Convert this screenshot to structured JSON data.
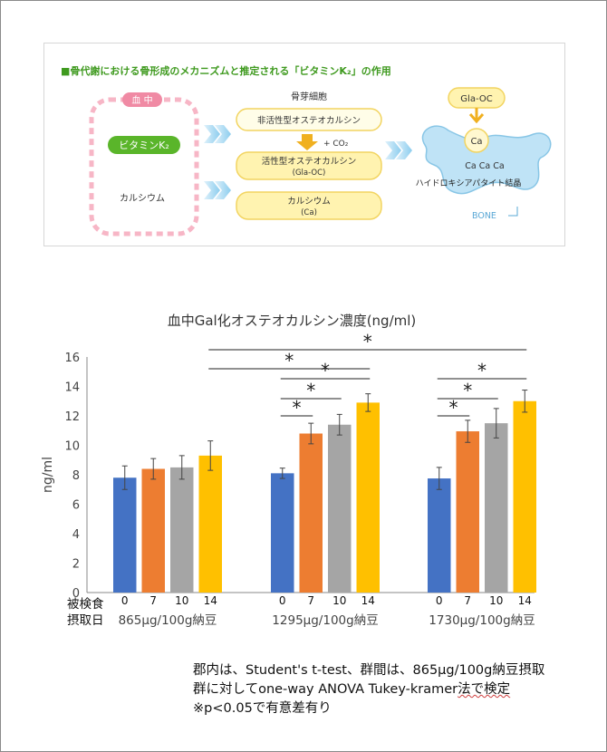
{
  "diagram": {
    "title": "■骨代謝における骨形成のメカニズムと推定される「ビタミンK₂」の作用",
    "blood_label": "血 中",
    "vitk2_label": "ビタミンK₂",
    "calcium_label": "カルシウム",
    "osteoblast_label": "骨芽細胞",
    "inactive_oc": "非活性型オステオカルシン",
    "co2": "+ CO₂",
    "active_oc": "活性型オステオカルシン",
    "active_oc_sub": "(Gla-OC)",
    "calcium_box": "カルシウム",
    "calcium_box_sub": "(Ca)",
    "glaoc": "Gla-OC",
    "ca": "Ca",
    "ca_row": "Ca  Ca  Ca",
    "hydroxy": "ハイドロキシアパタイト結晶",
    "bone": "BONE",
    "colors": {
      "green": "#5ab52a",
      "pink": "#f08aa4",
      "blue": "#a9d8f2",
      "yellow": "#f2c230"
    }
  },
  "chart_data": {
    "type": "bar",
    "title": "血中Gal化オステオカルシン濃度(ng/ml)",
    "ylabel": "ng/ml",
    "xlabel_lines": [
      "被検食",
      "摂取日"
    ],
    "ylim": [
      0,
      16
    ],
    "yticks": [
      0,
      2,
      4,
      6,
      8,
      10,
      12,
      14,
      16
    ],
    "grid": false,
    "groups": [
      {
        "name": "865µg/100g納豆",
        "days": [
          "0",
          "7",
          "10",
          "14"
        ],
        "values": [
          7.8,
          8.4,
          8.5,
          9.3
        ],
        "errors": [
          0.8,
          0.7,
          0.8,
          1.0
        ]
      },
      {
        "name": "1295µg/100g納豆",
        "days": [
          "0",
          "7",
          "10",
          "14"
        ],
        "values": [
          8.1,
          10.8,
          11.4,
          12.9
        ],
        "errors": [
          0.35,
          0.7,
          0.7,
          0.6
        ]
      },
      {
        "name": "1730µg/100g納豆",
        "days": [
          "0",
          "7",
          "10",
          "14"
        ],
        "values": [
          7.75,
          10.95,
          11.5,
          13.0
        ],
        "errors": [
          0.75,
          0.75,
          1.0,
          0.75
        ]
      }
    ],
    "series_colors": [
      "#4472c4",
      "#ed7d31",
      "#a5a5a5",
      "#ffc000"
    ],
    "significance": [
      {
        "from": [
          1,
          0
        ],
        "to": [
          1,
          1
        ],
        "label": "*"
      },
      {
        "from": [
          1,
          0
        ],
        "to": [
          1,
          2
        ],
        "label": "*"
      },
      {
        "from": [
          1,
          0
        ],
        "to": [
          1,
          3
        ],
        "label": "*"
      },
      {
        "from": [
          2,
          0
        ],
        "to": [
          2,
          1
        ],
        "label": "*"
      },
      {
        "from": [
          2,
          0
        ],
        "to": [
          2,
          2
        ],
        "label": "*"
      },
      {
        "from": [
          2,
          0
        ],
        "to": [
          2,
          3
        ],
        "label": "*"
      },
      {
        "from": [
          0,
          3
        ],
        "to": [
          1,
          3
        ],
        "label": "*"
      },
      {
        "from": [
          0,
          3
        ],
        "to": [
          2,
          3
        ],
        "label": "*"
      }
    ]
  },
  "notes": {
    "line1": "郡内は、Student's t-test、群間は、865µg/100g納豆摂取",
    "line2a": "群に対して",
    "line2b": "one-way ANOVA Tukey-kramer",
    "line2c": "法で検定",
    "line3": "※p<0.05で有意差有り"
  }
}
